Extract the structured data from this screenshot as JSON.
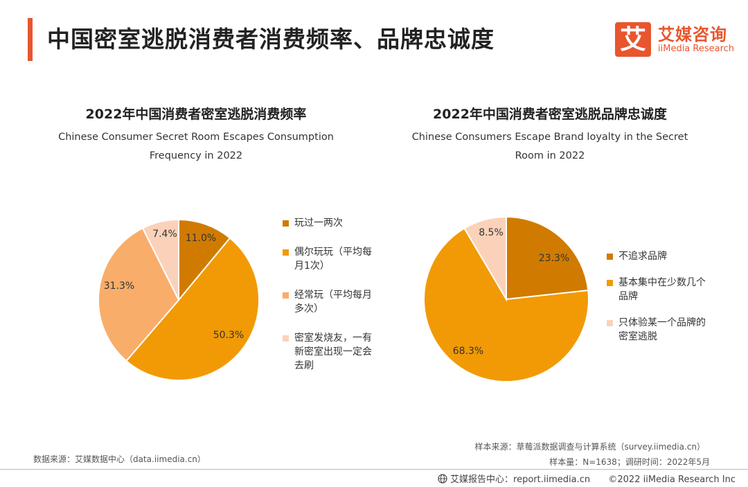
{
  "page": {
    "title": "中国密室逃脱消费者消费频率、品牌忠诚度"
  },
  "logo": {
    "mark": "艾",
    "name_cn": "艾媒咨询",
    "name_en": "iiMedia Research"
  },
  "chart_data": [
    {
      "type": "pie",
      "title": "2022年中国消费者密室逃脱消费频率",
      "subtitle": "Chinese Consumer Secret Room Escapes Consumption Frequency in 2022",
      "subtitle_lines": [
        "Chinese Consumer Secret Room Escapes Consumption",
        "Frequency in 2022"
      ],
      "unit": "%",
      "slices": [
        {
          "label": "玩过一两次",
          "legend_lines": [
            "玩过一两次"
          ],
          "value": 11.0,
          "value_label": "11.0%",
          "color": "#d07b00"
        },
        {
          "label": "偶尔玩玩（平均每月1次）",
          "legend_lines": [
            "偶尔玩玩（平均每",
            "月1次）"
          ],
          "value": 50.3,
          "value_label": "50.3%",
          "color": "#f19a05"
        },
        {
          "label": "经常玩（平均每月多次）",
          "legend_lines": [
            "经常玩（平均每月",
            "多次）"
          ],
          "value": 31.3,
          "value_label": "31.3%",
          "color": "#f9ad6a"
        },
        {
          "label": "密室发烧友，一有新密室出现一定会去刷",
          "legend_lines": [
            "密室发烧友，一有",
            "新密室出现一定会",
            "去刷"
          ],
          "value": 7.4,
          "value_label": "7.4%",
          "color": "#fbd2b9"
        }
      ],
      "legend_placement": "right"
    },
    {
      "type": "pie",
      "title": "2022年中国消费者密室逃脱品牌忠诚度",
      "subtitle": "Chinese Consumers Escape Brand loyalty in the Secret Room in 2022",
      "subtitle_lines": [
        "Chinese Consumers Escape Brand loyalty in the Secret",
        "Room in 2022"
      ],
      "unit": "%",
      "slices": [
        {
          "label": "不追求品牌",
          "legend_lines": [
            "不追求品牌"
          ],
          "value": 23.3,
          "value_label": "23.3%",
          "color": "#d07b00"
        },
        {
          "label": "基本集中在少数几个品牌",
          "legend_lines": [
            "基本集中在少数几个",
            "品牌"
          ],
          "value": 68.3,
          "value_label": "68.3%",
          "color": "#f19a05"
        },
        {
          "label": "只体验某一个品牌的密室逃脱",
          "legend_lines": [
            "只体验某一个品牌的",
            "密室逃脱"
          ],
          "value": 8.5,
          "value_label": "8.5%",
          "color": "#fbd2b9"
        }
      ],
      "legend_placement": "right"
    }
  ],
  "sources": {
    "data_source": "数据来源：艾媒数据中心（data.iimedia.cn）",
    "sample_source": "样本来源：草莓派数据调查与计算系统（survey.iimedia.cn）",
    "sample_info": "样本量：N=1638；调研时间：2022年5月"
  },
  "footer": {
    "report_center": "艾媒报告中心：report.iimedia.cn",
    "copyright": "©2022  iiMedia Research  Inc"
  }
}
